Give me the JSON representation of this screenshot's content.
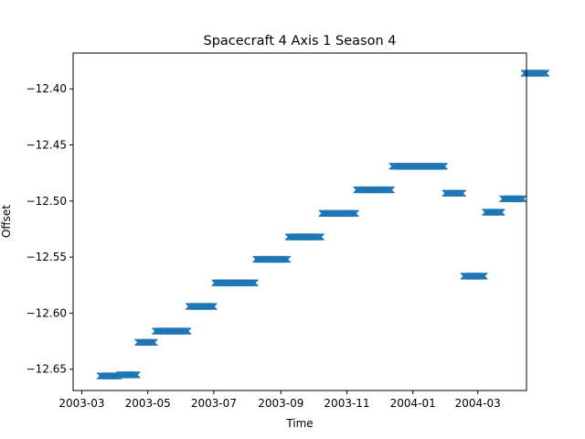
{
  "chart_data": {
    "type": "scatter",
    "title": "Spacecraft 4 Axis 1 Season 4",
    "xlabel": "Time",
    "ylabel": "Offset",
    "x_axis_type": "date",
    "xlim": [
      "2003-02-21",
      "2004-04-15"
    ],
    "ylim": [
      -12.669,
      -12.368
    ],
    "grid": false,
    "legend": "none",
    "marker": "x",
    "color": "#1f77b4",
    "x_ticks": [
      "2003-03-01",
      "2003-05-01",
      "2003-07-01",
      "2003-09-01",
      "2003-11-01",
      "2004-01-01",
      "2004-03-01"
    ],
    "x_tick_labels": [
      "2003-03",
      "2003-05",
      "2003-07",
      "2003-09",
      "2003-11",
      "2004-01",
      "2004-03"
    ],
    "y_ticks": [
      -12.4,
      -12.45,
      -12.5,
      -12.55,
      -12.6,
      -12.65
    ],
    "y_tick_labels": [
      "−12.40",
      "−12.45",
      "−12.50",
      "−12.55",
      "−12.60",
      "−12.65"
    ],
    "segments": [
      {
        "start": "2003-03-18",
        "end": "2003-04-05",
        "y": -12.656
      },
      {
        "start": "2003-04-05",
        "end": "2003-04-22",
        "y": -12.655
      },
      {
        "start": "2003-04-22",
        "end": "2003-05-08",
        "y": -12.626
      },
      {
        "start": "2003-05-08",
        "end": "2003-06-08",
        "y": -12.616
      },
      {
        "start": "2003-06-08",
        "end": "2003-07-02",
        "y": -12.594
      },
      {
        "start": "2003-07-02",
        "end": "2003-08-09",
        "y": -12.573
      },
      {
        "start": "2003-08-09",
        "end": "2003-09-08",
        "y": -12.552
      },
      {
        "start": "2003-09-08",
        "end": "2003-10-09",
        "y": -12.532
      },
      {
        "start": "2003-10-09",
        "end": "2003-11-10",
        "y": -12.511
      },
      {
        "start": "2003-11-10",
        "end": "2003-12-13",
        "y": -12.49
      },
      {
        "start": "2003-12-13",
        "end": "2004-01-31",
        "y": -12.469
      },
      {
        "start": "2004-01-31",
        "end": "2004-02-17",
        "y": -12.493
      },
      {
        "start": "2004-02-17",
        "end": "2004-03-08",
        "y": -12.567
      },
      {
        "start": "2004-03-08",
        "end": "2004-03-24",
        "y": -12.51
      },
      {
        "start": "2004-03-24",
        "end": "2004-04-13",
        "y": -12.498
      },
      {
        "start": "2004-04-13",
        "end": "2004-05-04",
        "y": -12.386
      }
    ]
  }
}
